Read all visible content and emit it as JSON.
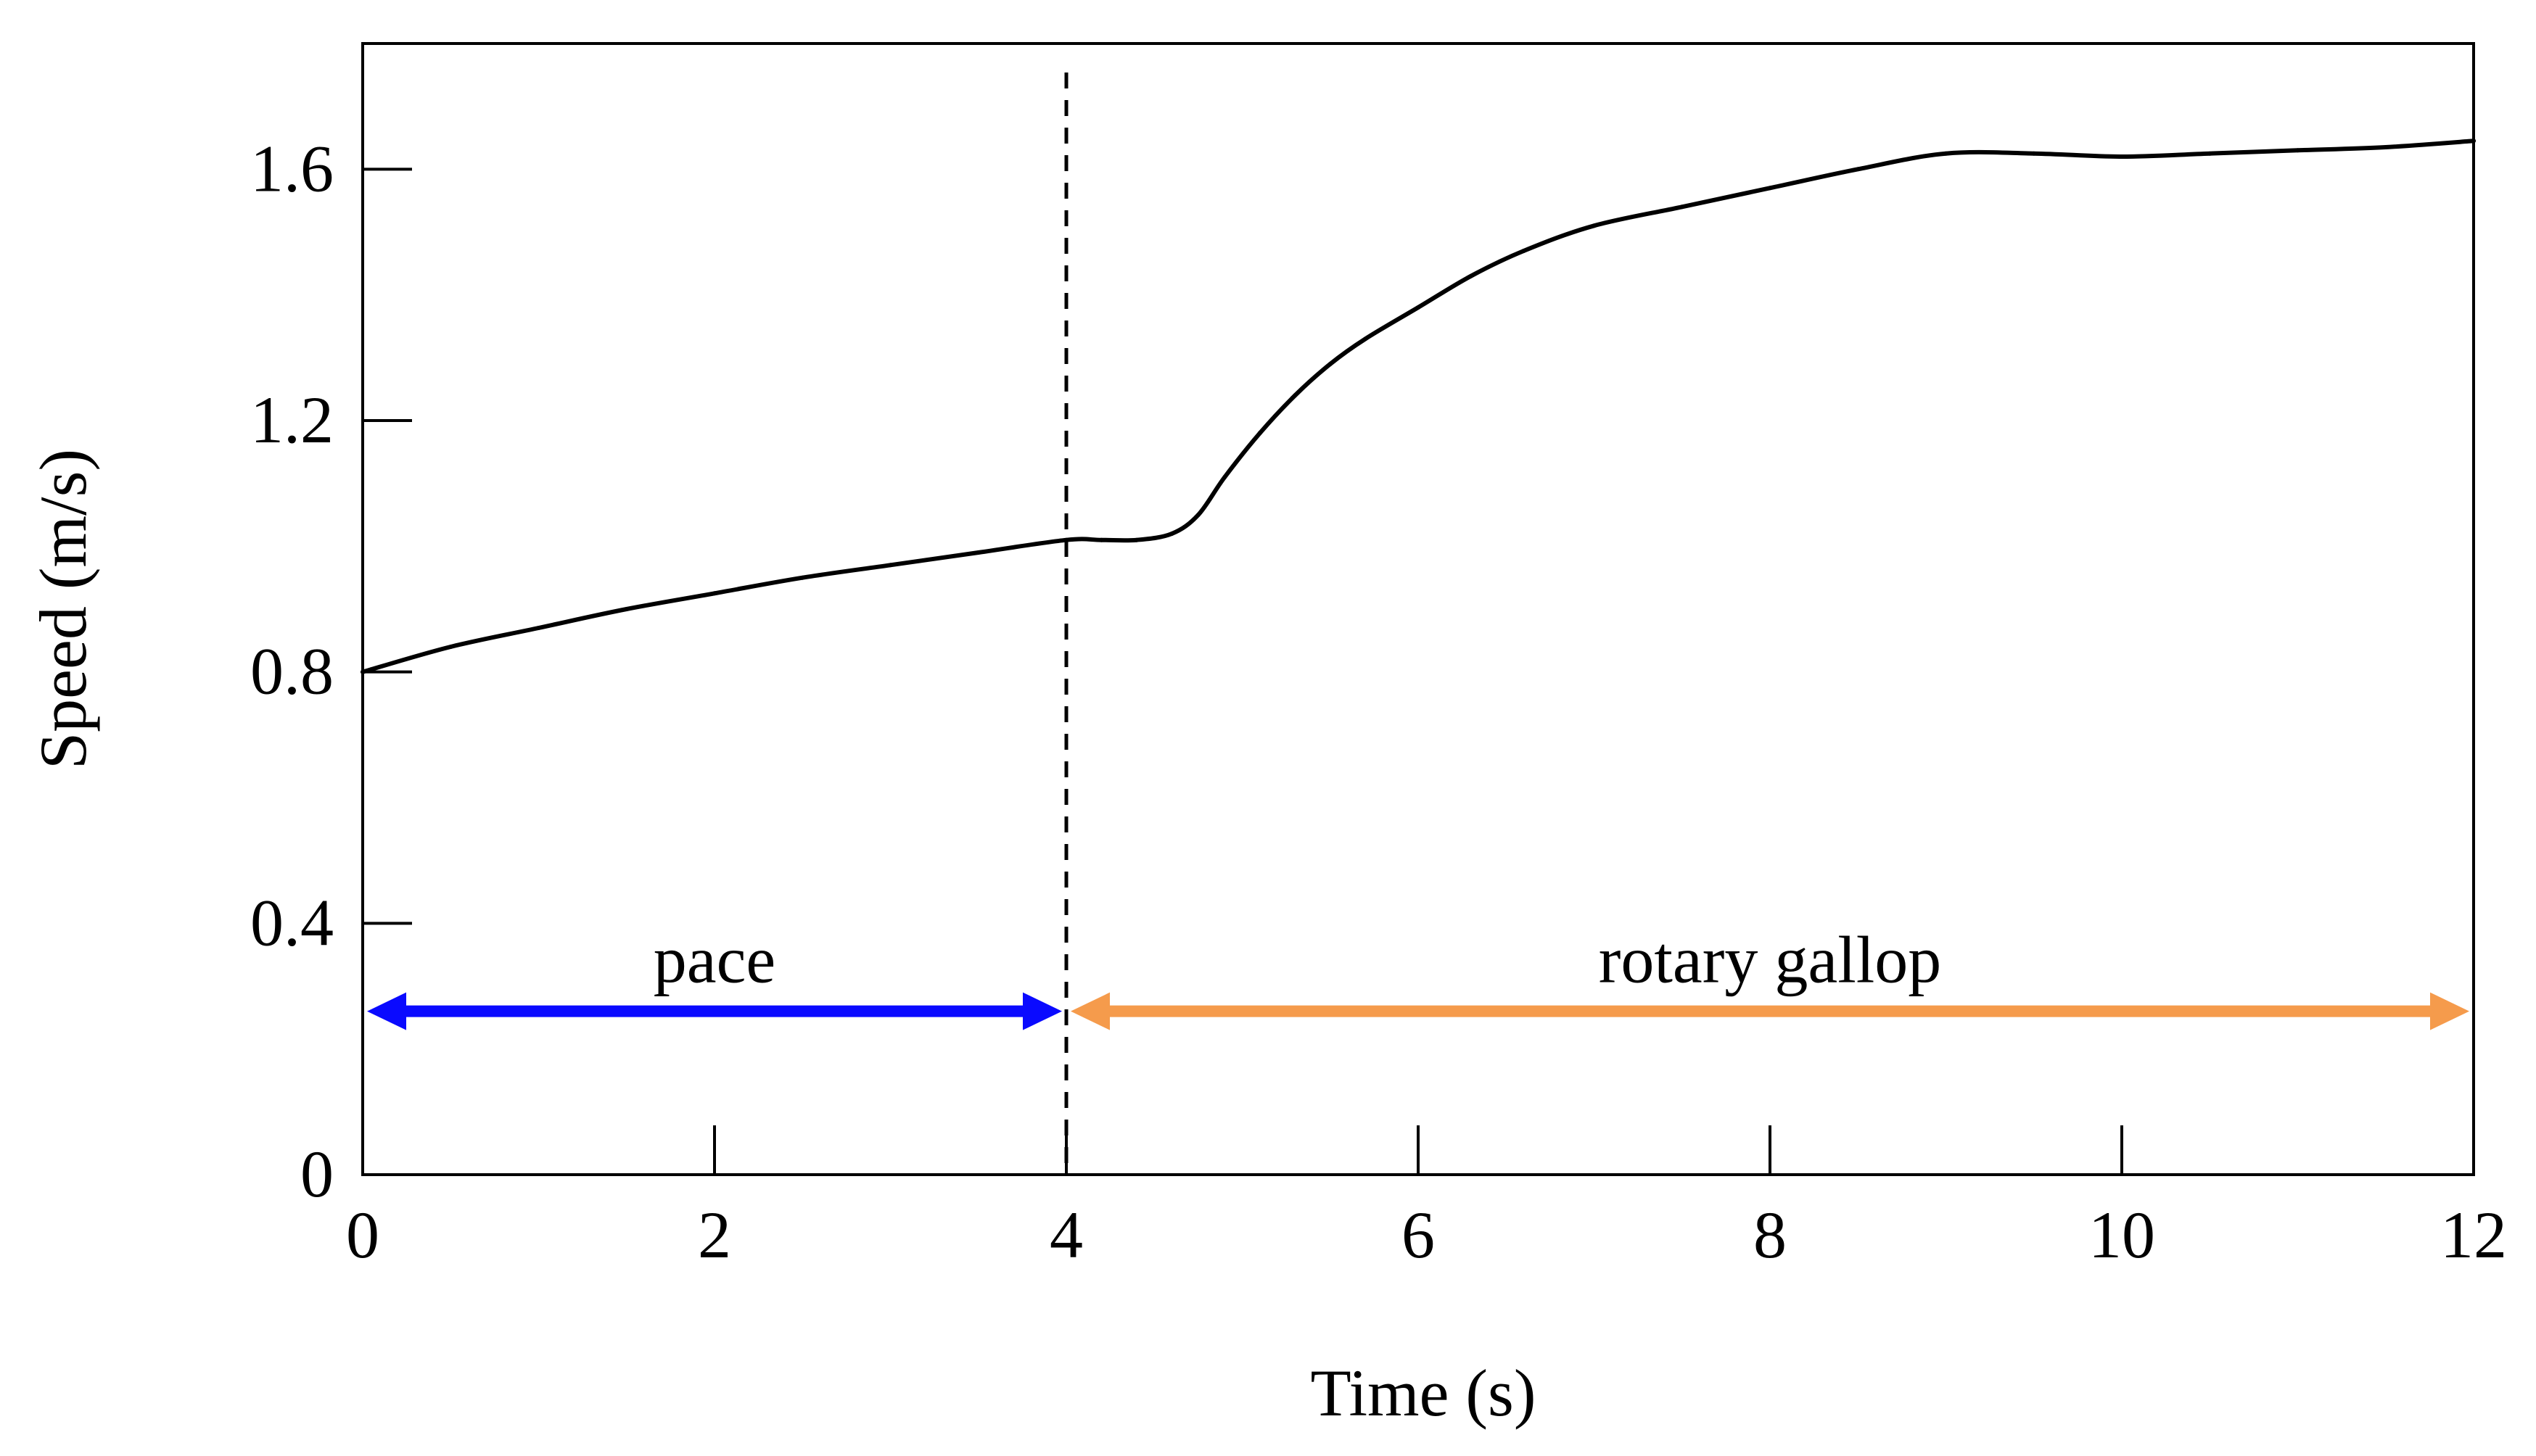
{
  "chart_data": {
    "type": "line",
    "title": "",
    "xlabel": "Time (s)",
    "ylabel": "Speed (m/s)",
    "xlim": [
      0,
      12
    ],
    "ylim": [
      0,
      1.8
    ],
    "xticks": [
      0,
      2,
      4,
      6,
      8,
      10,
      12
    ],
    "xtick_labels": [
      "0",
      "2",
      "4",
      "6",
      "8",
      "10",
      "12"
    ],
    "yticks": [
      0,
      0.4,
      0.8,
      1.2,
      1.6
    ],
    "ytick_labels": [
      "0",
      "0.4",
      "0.8",
      "1.2",
      "1.6"
    ],
    "grid": false,
    "series": [
      {
        "name": "speed",
        "color": "#000000",
        "x": [
          0,
          0.5,
          1,
          1.5,
          2,
          2.5,
          3,
          3.5,
          4,
          4.2,
          4.4,
          4.6,
          4.75,
          4.9,
          5.1,
          5.3,
          5.5,
          5.7,
          6,
          6.3,
          6.6,
          7,
          7.5,
          8,
          8.5,
          9,
          9.5,
          10,
          10.5,
          11,
          11.5,
          12
        ],
        "y": [
          0.8,
          0.84,
          0.87,
          0.9,
          0.925,
          0.95,
          0.97,
          0.99,
          1.01,
          1.01,
          1.01,
          1.02,
          1.05,
          1.11,
          1.18,
          1.24,
          1.29,
          1.33,
          1.38,
          1.43,
          1.47,
          1.51,
          1.54,
          1.57,
          1.6,
          1.625,
          1.625,
          1.62,
          1.625,
          1.63,
          1.635,
          1.645
        ]
      }
    ],
    "annotations": [
      {
        "type": "vline",
        "x": 4,
        "style": "dashed",
        "color": "#000000"
      },
      {
        "type": "double-arrow",
        "label": "pace",
        "x_start": 0,
        "x_end": 4,
        "y": 0.26,
        "color": "#0a0aff"
      },
      {
        "type": "double-arrow",
        "label": "rotary gallop",
        "x_start": 4,
        "x_end": 12,
        "y": 0.26,
        "color": "#f59b4c"
      }
    ]
  }
}
